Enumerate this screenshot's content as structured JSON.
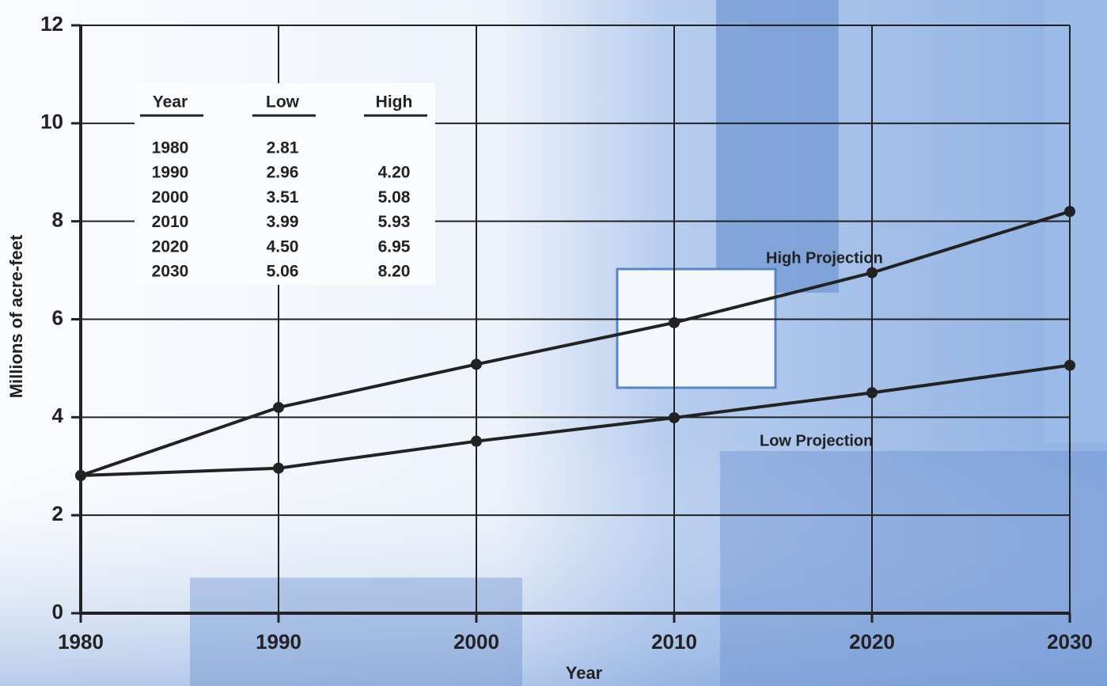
{
  "chart_data": {
    "type": "line",
    "x_label": "Year",
    "y_label": "Millions of acre-feet",
    "x": [
      1980,
      1990,
      2000,
      2010,
      2020,
      2030
    ],
    "series": [
      {
        "name": "Low Projection",
        "color": "#222222",
        "values": [
          2.81,
          2.96,
          3.51,
          3.99,
          4.5,
          5.06
        ]
      },
      {
        "name": "High Projection",
        "color": "#222222",
        "values": [
          2.81,
          4.2,
          5.08,
          5.93,
          6.95,
          8.2
        ]
      }
    ],
    "xlim": [
      1980,
      2030
    ],
    "xticks": [
      1980,
      1990,
      2000,
      2010,
      2020,
      2030
    ],
    "ylim": [
      0,
      12
    ],
    "yticks": [
      0,
      2,
      4,
      6,
      8,
      10,
      12
    ],
    "grid": true,
    "table": {
      "columns": [
        "Year",
        "Low",
        "High"
      ],
      "rows": [
        [
          "1980",
          "2.81"
        ],
        [
          "1990",
          "2.96",
          "4.20"
        ],
        [
          "2000",
          "3.51",
          "5.08"
        ],
        [
          "2010",
          "3.99",
          "5.93"
        ],
        [
          "2020",
          "4.50",
          "6.95"
        ],
        [
          "2030",
          "5.06",
          "8.20"
        ]
      ]
    }
  }
}
